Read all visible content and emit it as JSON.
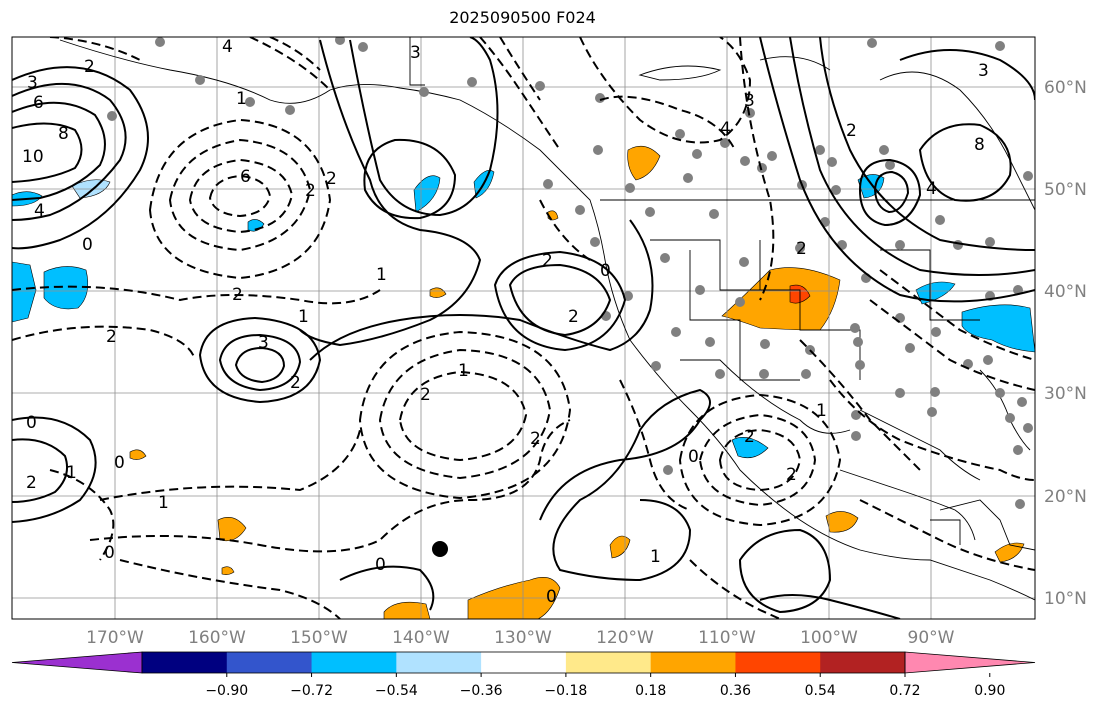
{
  "title": "2025090500 F024",
  "lon_labels": [
    "170°W",
    "160°W",
    "150°W",
    "140°W",
    "130°W",
    "120°W",
    "110°W",
    "100°W",
    "90°W"
  ],
  "lat_labels": [
    "60°N",
    "50°N",
    "40°N",
    "30°N",
    "20°N",
    "10°N"
  ],
  "colorbar": {
    "colors": [
      "#9b30d0",
      "#000080",
      "#3355cc",
      "#00bfff",
      "#b0e2ff",
      "#ffffff",
      "#ffe98a",
      "#ffa500",
      "#ff4500",
      "#b22222",
      "#ff88b0"
    ],
    "ticks": [
      "−0.90",
      "−0.72",
      "−0.54",
      "−0.36",
      "−0.18",
      "0.18",
      "0.36",
      "0.54",
      "0.72",
      "0.90"
    ]
  },
  "contour_labels": [
    "3",
    "6",
    "8",
    "10",
    "4",
    "0",
    "2",
    "6",
    "2",
    "3",
    "2",
    "4",
    "1",
    "2",
    "1",
    "3",
    "2",
    "2",
    "2",
    "1",
    "2",
    "0",
    "2",
    "1",
    "0",
    "0",
    "1",
    "0",
    "0",
    "1",
    "0",
    "2",
    "2",
    "1",
    "4",
    "3",
    "8",
    "3",
    "4",
    "2",
    "2",
    "2",
    "0",
    "1",
    "2"
  ],
  "colors": {
    "gridline": "#909090",
    "tick_text": "#808080",
    "station_dot": "#808080",
    "negative_shade": "#00bfff",
    "positive_shade": "#ffa500"
  }
}
